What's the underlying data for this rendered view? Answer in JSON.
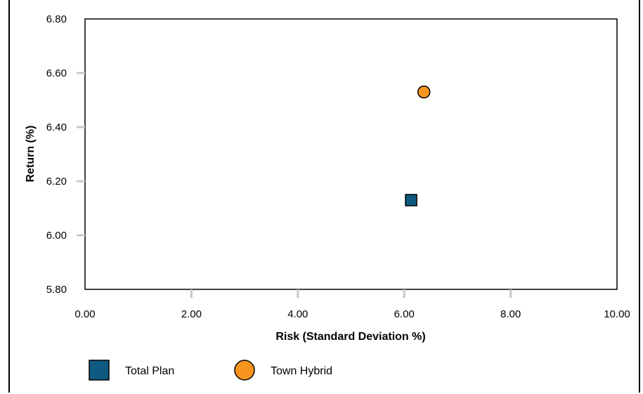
{
  "chart_data": {
    "type": "scatter",
    "xlabel": "Risk (Standard Deviation %)",
    "ylabel": "Return (%)",
    "xlim": [
      0,
      10
    ],
    "ylim": [
      5.8,
      6.8
    ],
    "xticks": [
      "0.00",
      "2.00",
      "4.00",
      "6.00",
      "8.00",
      "10.00"
    ],
    "yticks": [
      "5.80",
      "6.00",
      "6.20",
      "6.40",
      "6.60",
      "6.80"
    ],
    "grid": false,
    "legend_position": "bottom-left",
    "series": [
      {
        "name": "Total Plan",
        "marker": "square",
        "color": "#0e5a80",
        "x": 6.13,
        "y": 6.13
      },
      {
        "name": "Town Hybrid",
        "marker": "circle",
        "color": "#f7941d",
        "x": 6.37,
        "y": 6.53
      }
    ]
  }
}
